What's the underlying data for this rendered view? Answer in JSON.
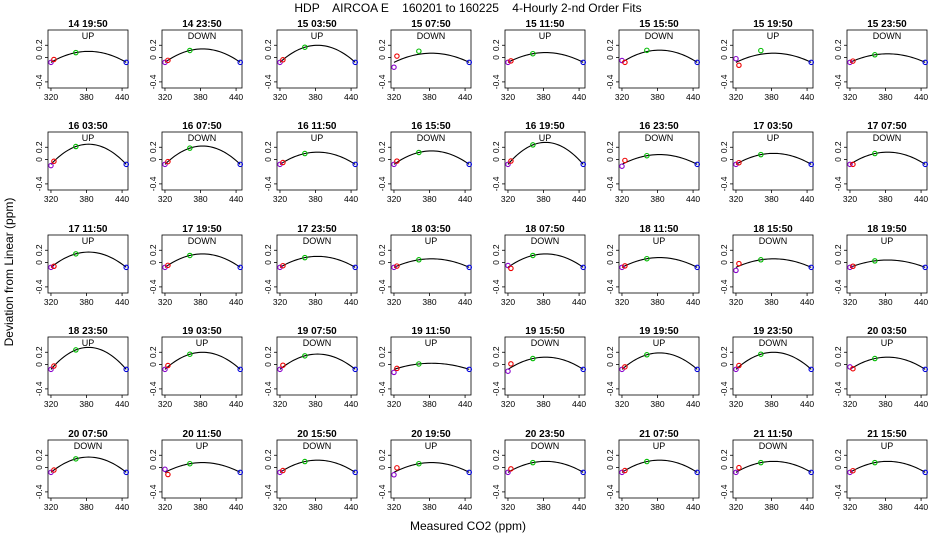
{
  "chart_data": {
    "type": "scatter",
    "title": "HDP    AIRCOA E    160201 to 160225    4-Hourly 2-nd Order Fits",
    "xlabel": "Measured CO2 (ppm)",
    "ylabel": "Deviation from Linear (ppm)",
    "xlim": [
      315,
      450
    ],
    "ylim": [
      -0.5,
      0.45
    ],
    "xticks": [
      320,
      380,
      440
    ],
    "yticks": [
      -0.4,
      0.0,
      0.2
    ],
    "ytick_labels": [
      "-0.4",
      "0",
      "0.2"
    ],
    "grid": false,
    "point_x": [
      320,
      325,
      362,
      447
    ],
    "colors": {
      "curve": "#000000",
      "p1": "#8800cc",
      "p2": "#ee0000",
      "p3": "#00bb00",
      "p4": "#0000dd"
    },
    "panels": [
      {
        "time": "14 19:50",
        "dir": "UP",
        "k": 0.18,
        "d": [
          0,
          0.02,
          0,
          0
        ]
      },
      {
        "time": "14 23:50",
        "dir": "DOWN",
        "k": 0.22,
        "d": [
          0,
          0,
          0,
          0
        ]
      },
      {
        "time": "15 03:50",
        "dir": "UP",
        "k": 0.28,
        "d": [
          0,
          0,
          0,
          0
        ]
      },
      {
        "time": "15 07:50",
        "dir": "DOWN",
        "k": 0.15,
        "d": [
          -0.08,
          0.08,
          0.05,
          0
        ]
      },
      {
        "time": "15 11:50",
        "dir": "UP",
        "k": 0.16,
        "d": [
          0,
          0,
          0,
          0
        ]
      },
      {
        "time": "15 15:50",
        "dir": "DOWN",
        "k": 0.2,
        "d": [
          0.03,
          -0.03,
          0.02,
          0
        ]
      },
      {
        "time": "15 19:50",
        "dir": "UP",
        "k": 0.15,
        "d": [
          0.06,
          -0.07,
          0.06,
          0
        ]
      },
      {
        "time": "15 23:50",
        "dir": "DOWN",
        "k": 0.14,
        "d": [
          0,
          0,
          0,
          0
        ]
      },
      {
        "time": "16 03:50",
        "dir": "UP",
        "k": 0.33,
        "d": [
          -0.02,
          0,
          0,
          0
        ]
      },
      {
        "time": "16 07:50",
        "dir": "DOWN",
        "k": 0.3,
        "d": [
          0,
          0,
          0,
          0
        ]
      },
      {
        "time": "16 11:50",
        "dir": "UP",
        "k": 0.2,
        "d": [
          0,
          0,
          0,
          0
        ]
      },
      {
        "time": "16 15:50",
        "dir": "DOWN",
        "k": 0.22,
        "d": [
          0,
          0.02,
          0,
          0
        ]
      },
      {
        "time": "16 19:50",
        "dir": "UP",
        "k": 0.36,
        "d": [
          0,
          0,
          0,
          0
        ]
      },
      {
        "time": "16 23:50",
        "dir": "DOWN",
        "k": 0.16,
        "d": [
          -0.03,
          0.04,
          0,
          0
        ]
      },
      {
        "time": "17 03:50",
        "dir": "UP",
        "k": 0.18,
        "d": [
          0,
          0,
          0,
          0
        ]
      },
      {
        "time": "17 07:50",
        "dir": "DOWN",
        "k": 0.2,
        "d": [
          0,
          -0.03,
          0,
          0
        ]
      },
      {
        "time": "17 11:50",
        "dir": "UP",
        "k": 0.25,
        "d": [
          0,
          -0.02,
          0,
          0
        ]
      },
      {
        "time": "17 19:50",
        "dir": "DOWN",
        "k": 0.22,
        "d": [
          0,
          0,
          0,
          0
        ]
      },
      {
        "time": "17 23:50",
        "dir": "DOWN",
        "k": 0.18,
        "d": [
          0,
          0,
          0,
          0
        ]
      },
      {
        "time": "18 03:50",
        "dir": "UP",
        "k": 0.14,
        "d": [
          0,
          0,
          0,
          0
        ]
      },
      {
        "time": "18 07:50",
        "dir": "DOWN",
        "k": 0.22,
        "d": [
          0.03,
          -0.05,
          0,
          0
        ]
      },
      {
        "time": "18 11:50",
        "dir": "UP",
        "k": 0.16,
        "d": [
          0,
          0,
          0,
          0
        ]
      },
      {
        "time": "18 15:50",
        "dir": "DOWN",
        "k": 0.14,
        "d": [
          -0.05,
          0.04,
          0,
          0
        ]
      },
      {
        "time": "18 19:50",
        "dir": "UP",
        "k": 0.12,
        "d": [
          0,
          0,
          0,
          0
        ]
      },
      {
        "time": "18 23:50",
        "dir": "UP",
        "k": 0.36,
        "d": [
          0,
          0,
          0,
          0
        ]
      },
      {
        "time": "19 03:50",
        "dir": "UP",
        "k": 0.28,
        "d": [
          0,
          0.02,
          0,
          0
        ]
      },
      {
        "time": "19 07:50",
        "dir": "DOWN",
        "k": 0.25,
        "d": [
          0,
          0.03,
          0,
          0
        ]
      },
      {
        "time": "19 11:50",
        "dir": "UP",
        "k": 0.1,
        "d": [
          -0.05,
          0,
          0,
          0
        ]
      },
      {
        "time": "19 15:50",
        "dir": "DOWN",
        "k": 0.2,
        "d": [
          -0.03,
          0.06,
          0,
          0
        ]
      },
      {
        "time": "19 19:50",
        "dir": "UP",
        "k": 0.27,
        "d": [
          0,
          0,
          0,
          0
        ]
      },
      {
        "time": "19 23:50",
        "dir": "DOWN",
        "k": 0.28,
        "d": [
          0,
          0.02,
          0,
          0
        ]
      },
      {
        "time": "20 03:50",
        "dir": "UP",
        "k": 0.2,
        "d": [
          0.04,
          -0.02,
          0,
          0
        ]
      },
      {
        "time": "20 07:50",
        "dir": "DOWN",
        "k": 0.25,
        "d": [
          0,
          0,
          0,
          0
        ]
      },
      {
        "time": "20 11:50",
        "dir": "UP",
        "k": 0.16,
        "d": [
          0.05,
          -0.06,
          0,
          0
        ]
      },
      {
        "time": "20 15:50",
        "dir": "DOWN",
        "k": 0.2,
        "d": [
          0,
          0,
          0,
          0
        ]
      },
      {
        "time": "20 19:50",
        "dir": "UP",
        "k": 0.16,
        "d": [
          -0.04,
          0.05,
          0,
          0
        ]
      },
      {
        "time": "20 23:50",
        "dir": "DOWN",
        "k": 0.18,
        "d": [
          0,
          0.03,
          0,
          0
        ]
      },
      {
        "time": "21 07:50",
        "dir": "UP",
        "k": 0.2,
        "d": [
          0,
          0,
          0,
          0
        ]
      },
      {
        "time": "21 11:50",
        "dir": "DOWN",
        "k": 0.18,
        "d": [
          0,
          0.05,
          0,
          0
        ]
      },
      {
        "time": "21 15:50",
        "dir": "UP",
        "k": 0.18,
        "d": [
          0,
          0,
          0,
          0
        ]
      }
    ]
  }
}
